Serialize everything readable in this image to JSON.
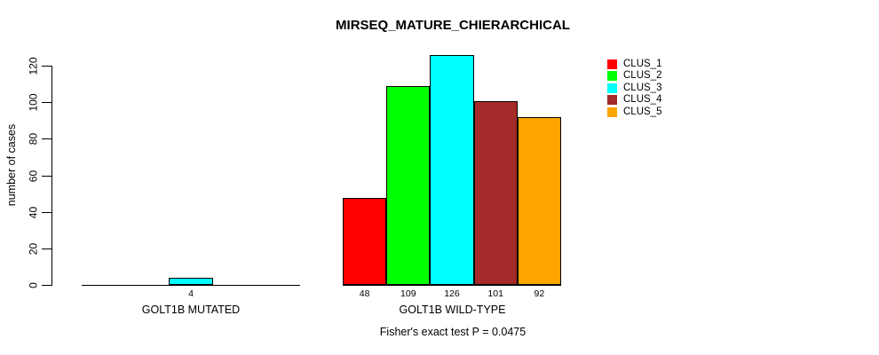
{
  "chart_data": {
    "type": "bar",
    "title": "MIRSEQ_MATURE_CHIERARCHICAL",
    "ylabel": "number of cases",
    "xlabel": "",
    "footer": "Fisher's exact test P = 0.0475",
    "categories": [
      "GOLT1B MUTATED",
      "GOLT1B WILD-TYPE"
    ],
    "series": [
      {
        "name": "CLUS_1",
        "color": "#FF0000",
        "values": [
          0,
          48
        ]
      },
      {
        "name": "CLUS_2",
        "color": "#00FF00",
        "values": [
          0,
          109
        ]
      },
      {
        "name": "CLUS_3",
        "color": "#00FFFF",
        "values": [
          4,
          126
        ]
      },
      {
        "name": "CLUS_4",
        "color": "#A52A2A",
        "values": [
          0,
          101
        ]
      },
      {
        "name": "CLUS_5",
        "color": "#FFA500",
        "values": [
          0,
          92
        ]
      }
    ],
    "bar_value_labels": [
      [
        "",
        "",
        "4",
        "",
        ""
      ],
      [
        "48",
        "109",
        "126",
        "101",
        "92"
      ]
    ],
    "yticks": [
      0,
      20,
      40,
      60,
      80,
      100,
      120
    ],
    "ylim": [
      0,
      120
    ],
    "grid": false,
    "legend_position": "top-right",
    "bar_border_color": "#000000",
    "background_color": "#FFFFFF"
  }
}
